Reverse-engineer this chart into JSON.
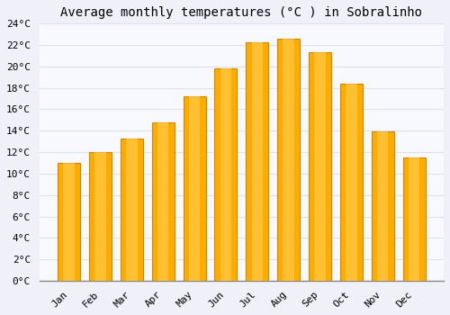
{
  "title": "Average monthly temperatures (°C ) in Sobralinho",
  "months": [
    "Jan",
    "Feb",
    "Mar",
    "Apr",
    "May",
    "Jun",
    "Jul",
    "Aug",
    "Sep",
    "Oct",
    "Nov",
    "Dec"
  ],
  "values": [
    11.0,
    12.0,
    13.3,
    14.8,
    17.2,
    19.8,
    22.3,
    22.6,
    21.3,
    18.4,
    13.9,
    11.5
  ],
  "bar_color": "#FFAB00",
  "bar_edge_color": "#CC8800",
  "bar_face_light": "#FFD055",
  "background_color": "#F0F0F8",
  "plot_bg_color": "#F8F8FF",
  "grid_color": "#E0E0E8",
  "ylim": [
    0,
    24
  ],
  "ytick_step": 2,
  "title_fontsize": 10,
  "tick_fontsize": 8,
  "font_family": "monospace"
}
